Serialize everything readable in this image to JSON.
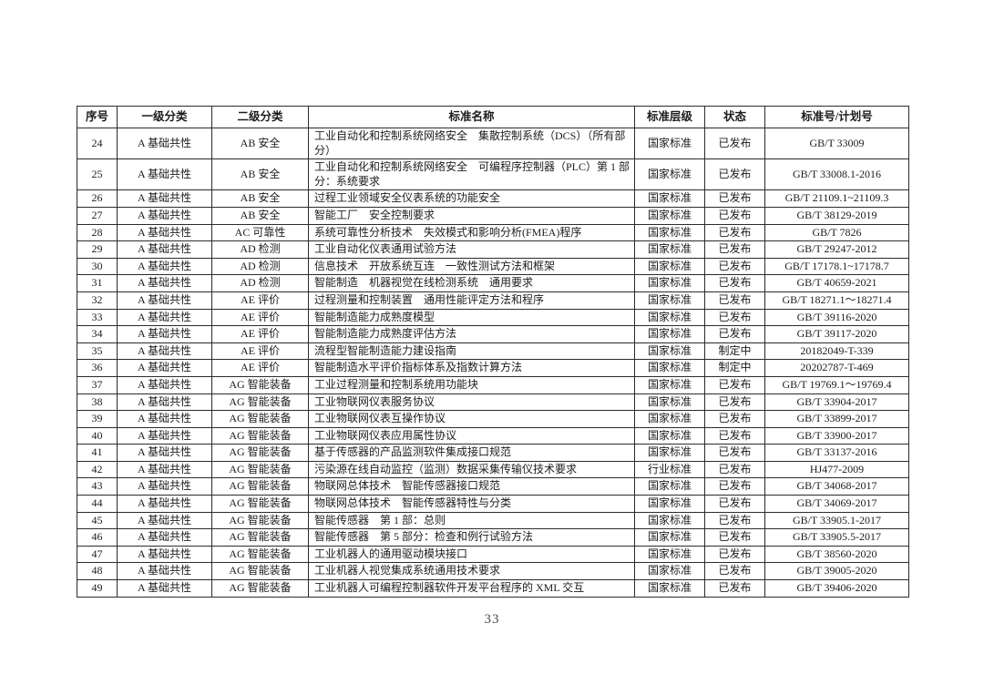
{
  "document": {
    "page_number": "33"
  },
  "table": {
    "headers": [
      "序号",
      "一级分类",
      "二级分类",
      "标准名称",
      "标准层级",
      "状态",
      "标准号/计划号"
    ],
    "rows": [
      [
        "24",
        "A 基础共性",
        "AB 安全",
        "工业自动化和控制系统网络安全　集散控制系统（DCS）（所有部分）",
        "国家标准",
        "已发布",
        "GB/T 33009"
      ],
      [
        "25",
        "A 基础共性",
        "AB 安全",
        "工业自动化和控制系统网络安全　可编程序控制器（PLC）第 1 部分：系统要求",
        "国家标准",
        "已发布",
        "GB/T 33008.1-2016"
      ],
      [
        "26",
        "A 基础共性",
        "AB 安全",
        "过程工业领域安全仪表系统的功能安全",
        "国家标准",
        "已发布",
        "GB/T 21109.1~21109.3"
      ],
      [
        "27",
        "A 基础共性",
        "AB 安全",
        "智能工厂　安全控制要求",
        "国家标准",
        "已发布",
        "GB/T 38129-2019"
      ],
      [
        "28",
        "A 基础共性",
        "AC 可靠性",
        "系统可靠性分析技术　失效模式和影响分析(FMEA)程序",
        "国家标准",
        "已发布",
        "GB/T 7826"
      ],
      [
        "29",
        "A 基础共性",
        "AD 检测",
        "工业自动化仪表通用试验方法",
        "国家标准",
        "已发布",
        "GB/T 29247-2012"
      ],
      [
        "30",
        "A 基础共性",
        "AD 检测",
        "信息技术　开放系统互连　一致性测试方法和框架",
        "国家标准",
        "已发布",
        "GB/T 17178.1~17178.7"
      ],
      [
        "31",
        "A 基础共性",
        "AD 检测",
        "智能制造　机器视觉在线检测系统　通用要求",
        "国家标准",
        "已发布",
        "GB/T 40659-2021"
      ],
      [
        "32",
        "A 基础共性",
        "AE 评价",
        "过程测量和控制装置　通用性能评定方法和程序",
        "国家标准",
        "已发布",
        "GB/T 18271.1～18271.4"
      ],
      [
        "33",
        "A 基础共性",
        "AE 评价",
        "智能制造能力成熟度模型",
        "国家标准",
        "已发布",
        "GB/T 39116-2020"
      ],
      [
        "34",
        "A 基础共性",
        "AE 评价",
        "智能制造能力成熟度评估方法",
        "国家标准",
        "已发布",
        "GB/T 39117-2020"
      ],
      [
        "35",
        "A 基础共性",
        "AE 评价",
        "流程型智能制造能力建设指南",
        "国家标准",
        "制定中",
        "20182049-T-339"
      ],
      [
        "36",
        "A 基础共性",
        "AE 评价",
        "智能制造水平评价指标体系及指数计算方法",
        "国家标准",
        "制定中",
        "20202787-T-469"
      ],
      [
        "37",
        "A 基础共性",
        "AG 智能装备",
        "工业过程测量和控制系统用功能块",
        "国家标准",
        "已发布",
        "GB/T 19769.1～19769.4"
      ],
      [
        "38",
        "A 基础共性",
        "AG 智能装备",
        "工业物联网仪表服务协议",
        "国家标准",
        "已发布",
        "GB/T 33904-2017"
      ],
      [
        "39",
        "A 基础共性",
        "AG 智能装备",
        "工业物联网仪表互操作协议",
        "国家标准",
        "已发布",
        "GB/T 33899-2017"
      ],
      [
        "40",
        "A 基础共性",
        "AG 智能装备",
        "工业物联网仪表应用属性协议",
        "国家标准",
        "已发布",
        "GB/T 33900-2017"
      ],
      [
        "41",
        "A 基础共性",
        "AG 智能装备",
        "基于传感器的产品监测软件集成接口规范",
        "国家标准",
        "已发布",
        "GB/T 33137-2016"
      ],
      [
        "42",
        "A 基础共性",
        "AG 智能装备",
        "污染源在线自动监控（监测）数据采集传输仪技术要求",
        "行业标准",
        "已发布",
        "HJ477-2009"
      ],
      [
        "43",
        "A 基础共性",
        "AG 智能装备",
        "物联网总体技术　智能传感器接口规范",
        "国家标准",
        "已发布",
        "GB/T 34068-2017"
      ],
      [
        "44",
        "A 基础共性",
        "AG 智能装备",
        "物联网总体技术　智能传感器特性与分类",
        "国家标准",
        "已发布",
        "GB/T 34069-2017"
      ],
      [
        "45",
        "A 基础共性",
        "AG 智能装备",
        "智能传感器　第 1 部：总则",
        "国家标准",
        "已发布",
        "GB/T 33905.1-2017"
      ],
      [
        "46",
        "A 基础共性",
        "AG 智能装备",
        "智能传感器　第 5 部分：检查和例行试验方法",
        "国家标准",
        "已发布",
        "GB/T 33905.5-2017"
      ],
      [
        "47",
        "A 基础共性",
        "AG 智能装备",
        "工业机器人的通用驱动模块接口",
        "国家标准",
        "已发布",
        "GB/T 38560-2020"
      ],
      [
        "48",
        "A 基础共性",
        "AG 智能装备",
        "工业机器人视觉集成系统通用技术要求",
        "国家标准",
        "已发布",
        "GB/T 39005-2020"
      ],
      [
        "49",
        "A 基础共性",
        "AG 智能装备",
        "工业机器人可编程控制器软件开发平台程序的 XML 交互",
        "国家标准",
        "已发布",
        "GB/T 39406-2020"
      ]
    ]
  }
}
